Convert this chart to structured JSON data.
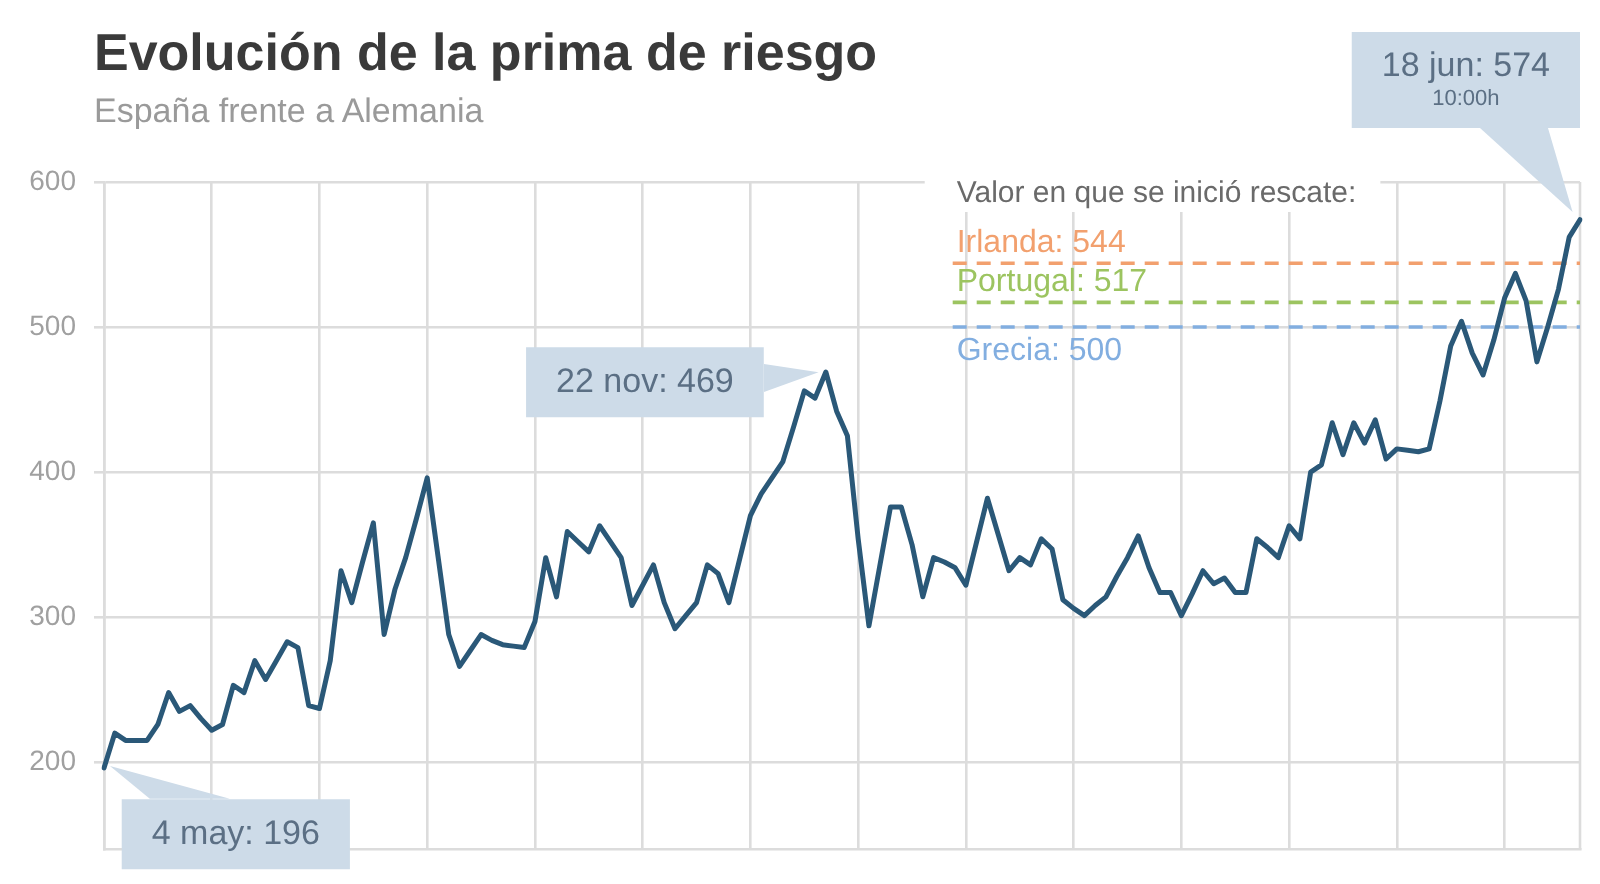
{
  "chart_data": {
    "type": "line",
    "title": "Evolución de la prima de riesgo",
    "subtitle": "España frente a Alemania",
    "categories": [
      null,
      null,
      null,
      null,
      null,
      null,
      null,
      null,
      null,
      null,
      null,
      null,
      null,
      null,
      null,
      null,
      null,
      null,
      null,
      null,
      null,
      null,
      null,
      null,
      null,
      null,
      null,
      null,
      null,
      null,
      null,
      null,
      null,
      null,
      null,
      null,
      null,
      null,
      null,
      null,
      null,
      null,
      null,
      null,
      null,
      null,
      null,
      null,
      null,
      null,
      null,
      null,
      null,
      null,
      null,
      null,
      null,
      null,
      null,
      null,
      null,
      null,
      null,
      null,
      null,
      null,
      null,
      null,
      null,
      null,
      null,
      null,
      null,
      null,
      null,
      null,
      null,
      null,
      null,
      null,
      null,
      null,
      null,
      null,
      null,
      null,
      null,
      null,
      null,
      null,
      null,
      null,
      null,
      null,
      null,
      null,
      null,
      null,
      null,
      null,
      null,
      null,
      null,
      null,
      null,
      null,
      null,
      null,
      null,
      null,
      null,
      null,
      null,
      null,
      null,
      null,
      null,
      null,
      null,
      null,
      null,
      null,
      null,
      null,
      null,
      null,
      null,
      null,
      null,
      null,
      null,
      null,
      null,
      null,
      null,
      null,
      null,
      null
    ],
    "values": [
      196,
      220,
      215,
      215,
      215,
      226,
      248,
      235,
      239,
      230,
      222,
      226,
      253,
      248,
      270,
      257,
      270,
      283,
      279,
      239,
      237,
      270,
      332,
      310,
      338,
      365,
      288,
      319,
      341,
      368,
      396,
      342,
      288,
      266,
      277,
      288,
      284,
      281,
      280,
      279,
      297,
      341,
      314,
      359,
      352,
      345,
      363,
      352,
      341,
      308,
      322,
      336,
      310,
      292,
      301,
      310,
      336,
      330,
      310,
      340,
      370,
      385,
      396,
      407,
      431,
      456,
      451,
      469,
      442,
      425,
      354,
      294,
      335,
      376,
      376,
      350,
      314,
      341,
      338,
      334,
      322,
      352,
      382,
      357,
      332,
      341,
      336,
      354,
      347,
      312,
      306,
      301,
      308,
      314,
      328,
      341,
      356,
      334,
      317,
      317,
      301,
      316,
      332,
      323,
      327,
      317,
      317,
      354,
      348,
      341,
      363,
      354,
      400,
      405,
      434,
      412,
      434,
      420,
      436,
      409,
      416,
      415,
      414,
      416,
      449,
      487,
      504,
      482,
      467,
      491,
      520,
      537,
      518,
      476,
      500,
      526,
      562,
      574
    ],
    "color": "#2a5878",
    "ylim": [
      140,
      600
    ],
    "yticks": [
      200,
      300,
      400,
      500,
      600
    ],
    "tick_labels": "y",
    "grid": true,
    "marker": "none",
    "line_style": "solid",
    "ref_lines": [
      {
        "axis": "y",
        "value": 544,
        "label": "Irlanda: 544",
        "color": "#f2a06e",
        "line_style": "dashed"
      },
      {
        "axis": "y",
        "value": 517,
        "label": "Portugal: 517",
        "color": "#9cc460",
        "line_style": "dashed"
      },
      {
        "axis": "y",
        "value": 500,
        "label": "Grecia: 500",
        "color": "#82aee0",
        "line_style": "dashed"
      }
    ],
    "annotations": [
      "Valor en que se inició rescate:",
      "4 may: 196",
      "22 nov: 469",
      "18 jun: 574\n10:00h"
    ]
  }
}
